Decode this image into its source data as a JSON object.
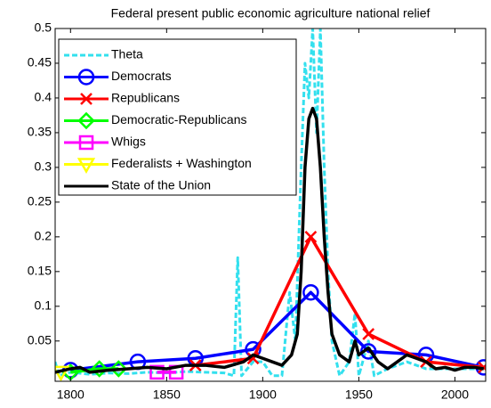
{
  "chart_data": {
    "type": "line",
    "title": "Federal present public economic agriculture national relief",
    "xlim": [
      1792,
      2016
    ],
    "ylim": [
      -0.008,
      0.5
    ],
    "xticks": [
      1800,
      1850,
      1900,
      1950,
      2000
    ],
    "yticks": [
      0.05,
      0.1,
      0.15,
      0.2,
      0.25,
      0.3,
      0.35,
      0.4,
      0.45,
      0.5
    ],
    "legend": "upper left",
    "series": [
      {
        "name": "Theta",
        "color": "#33e0ee",
        "linestyle": "dashed",
        "marker": "none",
        "x": [
          1792,
          1794,
          1800,
          1810,
          1820,
          1830,
          1840,
          1850,
          1860,
          1870,
          1880,
          1885,
          1887,
          1889,
          1895,
          1900,
          1905,
          1910,
          1914,
          1917,
          1920,
          1922,
          1924,
          1926,
          1928,
          1930,
          1932,
          1934,
          1936,
          1940,
          1945,
          1948,
          1950,
          1955,
          1958,
          1965,
          1975,
          1985,
          1995,
          2005,
          2015
        ],
        "values": [
          0.02,
          0.0,
          0.005,
          0.002,
          0.004,
          0.003,
          0.005,
          0.004,
          0.006,
          0.005,
          0.004,
          0.0,
          0.17,
          0.0,
          0.02,
          0.02,
          0.0,
          0.0,
          0.12,
          0.05,
          0.3,
          0.45,
          0.4,
          0.5,
          0.35,
          0.5,
          0.3,
          0.15,
          0.05,
          0.0,
          0.02,
          0.09,
          0.0,
          0.05,
          0.0,
          0.01,
          0.02,
          0.01,
          0.01,
          0.01,
          0.01
        ]
      },
      {
        "name": "Democrats",
        "color": "#0000ff",
        "linestyle": "solid",
        "marker": "o",
        "x": [
          1800,
          1835,
          1865,
          1895,
          1925,
          1955,
          1985,
          2015
        ],
        "values": [
          0.008,
          0.02,
          0.025,
          0.038,
          0.12,
          0.035,
          0.03,
          0.012
        ]
      },
      {
        "name": "Republicans",
        "color": "#ff0000",
        "linestyle": "solid",
        "marker": "x",
        "x": [
          1865,
          1895,
          1925,
          1955,
          1985,
          2015
        ],
        "values": [
          0.015,
          0.025,
          0.2,
          0.06,
          0.02,
          0.012
        ]
      },
      {
        "name": "Democratic-Republicans",
        "color": "#00ff00",
        "linestyle": "solid",
        "marker": "d",
        "x": [
          1800,
          1815,
          1825
        ],
        "values": [
          0.005,
          0.01,
          0.01
        ]
      },
      {
        "name": "Whigs",
        "color": "#ff00ff",
        "linestyle": "solid",
        "marker": "s",
        "x": [
          1845,
          1855
        ],
        "values": [
          0.005,
          0.005
        ]
      },
      {
        "name": "Federalists + Washington",
        "color": "#ffff00",
        "linestyle": "solid",
        "marker": "v",
        "x": [
          1795
        ],
        "values": [
          0.005
        ]
      },
      {
        "name": "State of the Union",
        "color": "#000000",
        "linestyle": "solid",
        "marker": "none",
        "x": [
          1792,
          1800,
          1805,
          1810,
          1820,
          1830,
          1840,
          1850,
          1860,
          1870,
          1880,
          1890,
          1895,
          1900,
          1905,
          1910,
          1915,
          1918,
          1920,
          1922,
          1924,
          1926,
          1928,
          1930,
          1932,
          1934,
          1936,
          1940,
          1945,
          1948,
          1950,
          1955,
          1960,
          1965,
          1970,
          1975,
          1980,
          1985,
          1990,
          1995,
          2000,
          2005,
          2010,
          2015
        ],
        "values": [
          0.005,
          0.01,
          0.012,
          0.005,
          0.008,
          0.01,
          0.012,
          0.01,
          0.015,
          0.015,
          0.012,
          0.02,
          0.03,
          0.025,
          0.02,
          0.015,
          0.03,
          0.06,
          0.15,
          0.3,
          0.37,
          0.385,
          0.37,
          0.3,
          0.2,
          0.12,
          0.06,
          0.03,
          0.02,
          0.05,
          0.03,
          0.04,
          0.02,
          0.01,
          0.02,
          0.03,
          0.025,
          0.02,
          0.01,
          0.012,
          0.008,
          0.012,
          0.012,
          0.01
        ]
      }
    ]
  }
}
